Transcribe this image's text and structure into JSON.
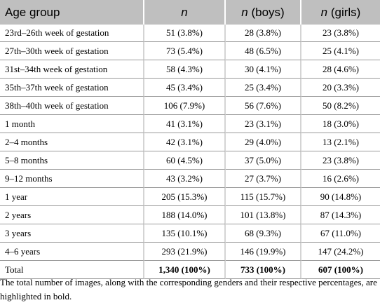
{
  "table": {
    "headers": [
      "Age group",
      "n",
      "n (boys)",
      "n (girls)"
    ],
    "rows": [
      [
        "23rd–26th week of gestation",
        "51 (3.8%)",
        "28 (3.8%)",
        "23 (3.8%)"
      ],
      [
        "27th–30th week of gestation",
        "73 (5.4%)",
        "48 (6.5%)",
        "25 (4.1%)"
      ],
      [
        "31st–34th week of gestation",
        "58 (4.3%)",
        "30 (4.1%)",
        "28 (4.6%)"
      ],
      [
        "35th–37th week of gestation",
        "45 (3.4%)",
        "25 (3.4%)",
        "20 (3.3%)"
      ],
      [
        "38th–40th week of gestation",
        "106 (7.9%)",
        "56 (7.6%)",
        "50 (8.2%)"
      ],
      [
        "1 month",
        "41 (3.1%)",
        "23 (3.1%)",
        "18 (3.0%)"
      ],
      [
        "2–4 months",
        "42 (3.1%)",
        "29 (4.0%)",
        "13 (2.1%)"
      ],
      [
        "5–8 months",
        "60 (4.5%)",
        "37 (5.0%)",
        "23 (3.8%)"
      ],
      [
        "9–12 months",
        "43 (3.2%)",
        "27 (3.7%)",
        "16 (2.6%)"
      ],
      [
        "1 year",
        "205 (15.3%)",
        "115 (15.7%)",
        "90 (14.8%)"
      ],
      [
        "2 years",
        "188 (14.0%)",
        "101 (13.8%)",
        "87 (14.3%)"
      ],
      [
        "3 years",
        "135 (10.1%)",
        "68 (9.3%)",
        "67 (11.0%)"
      ],
      [
        "4–6 years",
        "293 (21.9%)",
        "146 (19.9%)",
        "147 (24.2%)"
      ],
      [
        "Total",
        "1,340 (100%)",
        "733 (100%)",
        "607 (100%)"
      ]
    ]
  },
  "note": "The total number of images, along with the corresponding genders and their respective percentages, are highlighted in bold."
}
